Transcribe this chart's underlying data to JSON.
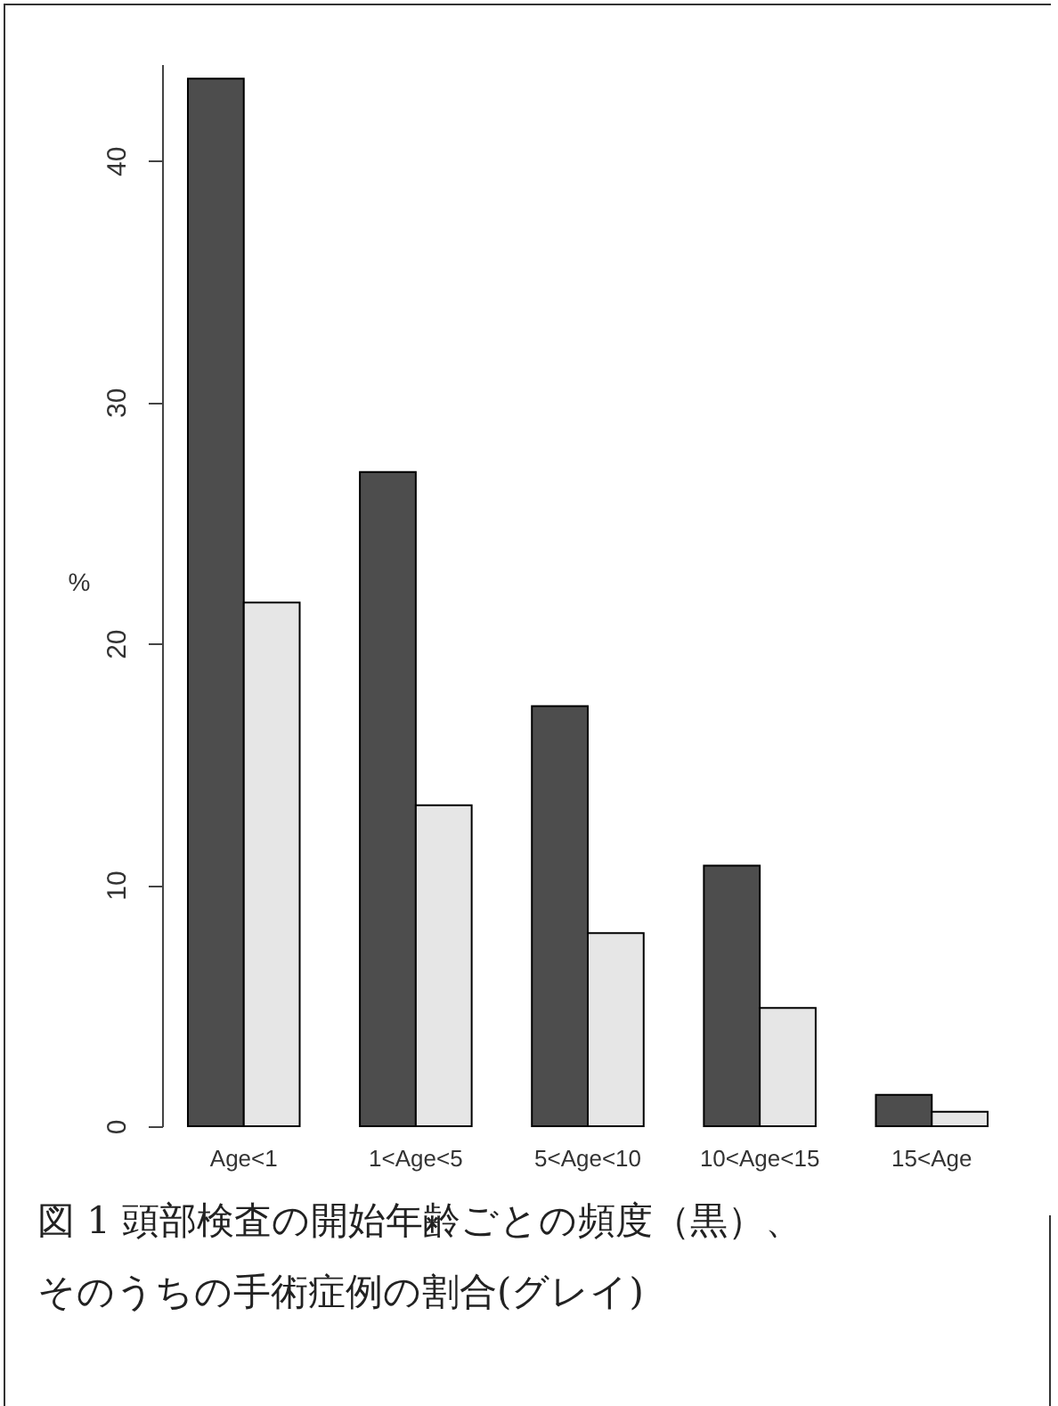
{
  "chart_data": {
    "type": "bar",
    "ylabel": "%",
    "categories": [
      "Age<1",
      "1<Age<5",
      "5<Age<10",
      "10<Age<15",
      "15<Age"
    ],
    "series": [
      {
        "color": "#4d4d4d",
        "values": [
          43.4,
          27.1,
          17.4,
          10.8,
          1.3
        ]
      },
      {
        "color": "#e6e6e6",
        "values": [
          21.7,
          13.3,
          8.0,
          4.9,
          0.6
        ]
      }
    ],
    "ylim": [
      0,
      44
    ],
    "yticks": [
      0,
      10,
      20,
      30,
      40
    ],
    "grid": false,
    "legend": false,
    "annotations": [
      "図 1 頭部検査の開始年齢ごとの頻度（黒）、",
      "そのうちの手術症例の割合(グレイ)"
    ]
  }
}
